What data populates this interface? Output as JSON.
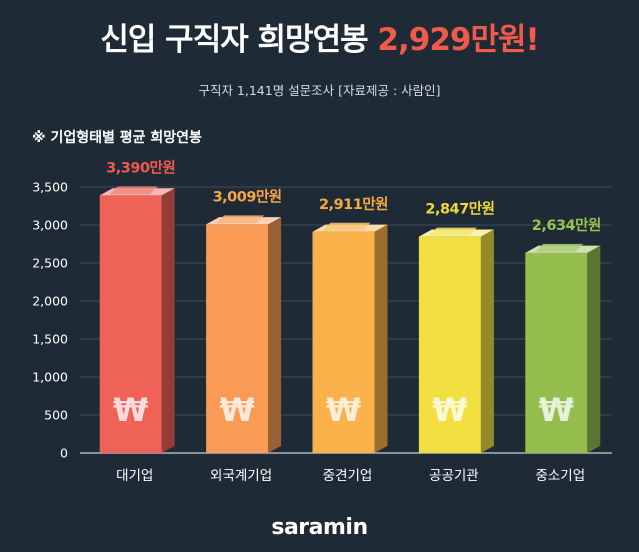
{
  "headline": {
    "part1": "신입 구직자 희망연봉",
    "part2": "2,929만원!"
  },
  "source": "구직자 1,141명 설문조사 [자료제공 : 사람인]",
  "brand": "saramin",
  "won_symbol": "₩",
  "colors": {
    "background": "#1e2b37",
    "headline_highlight": "#f15a4b",
    "bars": [
      "#ee6257",
      "#f99a55",
      "#fbb24a",
      "#f1df42",
      "#93be4d"
    ],
    "labels": [
      "#f15a4b",
      "#f7a548",
      "#f7ab3f",
      "#ecd93c",
      "#95c44f"
    ]
  },
  "chart_data": {
    "type": "bar",
    "title": "※ 기업형태별 평균 희망연봉",
    "categories": [
      "대기업",
      "외국계기업",
      "중견기업",
      "공공기관",
      "중소기업"
    ],
    "values": [
      3390,
      3009,
      2911,
      2847,
      2634
    ],
    "value_labels": [
      "3,390만원",
      "3,009만원",
      "2,911만원",
      "2,847만원",
      "2,634만원"
    ],
    "yticks": [
      "0",
      "500",
      "1,000",
      "1,500",
      "2,000",
      "2,500",
      "3,000",
      "3,500"
    ],
    "ylim": [
      0,
      3500
    ],
    "grid": true
  }
}
